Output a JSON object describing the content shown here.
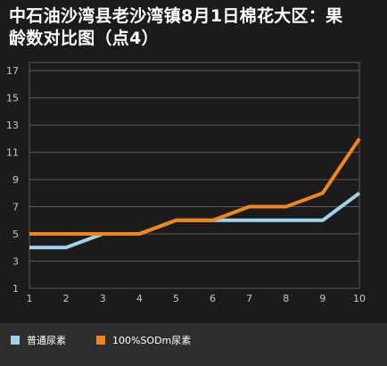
{
  "title_line1": "中石油沙湾县老沙湾镇8月1日棉花大区：果",
  "title_line2": "龄数对比图（点4）",
  "chart_data": {
    "type": "line",
    "title": "中石油沙湾县老沙湾镇8月1日棉花大区：果龄数对比图（点4）",
    "x": [
      1,
      2,
      3,
      4,
      5,
      6,
      7,
      8,
      9,
      10
    ],
    "series": [
      {
        "name": "普通尿素",
        "color": "#9fd3ea",
        "values": [
          4,
          4,
          5,
          5,
          6,
          6,
          6,
          6,
          6,
          8
        ]
      },
      {
        "name": "100%SODm尿素",
        "color": "#f0861b",
        "values": [
          5,
          5,
          5,
          5,
          6,
          6,
          7,
          7,
          8,
          12
        ]
      }
    ],
    "xlim": [
      1,
      10
    ],
    "ylim": [
      1,
      17.6
    ],
    "yticks": [
      1,
      3,
      5,
      7,
      9,
      11,
      13,
      15,
      17
    ],
    "grid": true,
    "legend_position": "bottom-left",
    "background": "#1b1b1b",
    "grid_color": "#5a5a5a",
    "axis_text_color": "#c8c8c8"
  },
  "legend": [
    {
      "label": "普通尿素",
      "color": "#9fd3ea"
    },
    {
      "label": "100%SODm尿素",
      "color": "#f0861b"
    }
  ]
}
